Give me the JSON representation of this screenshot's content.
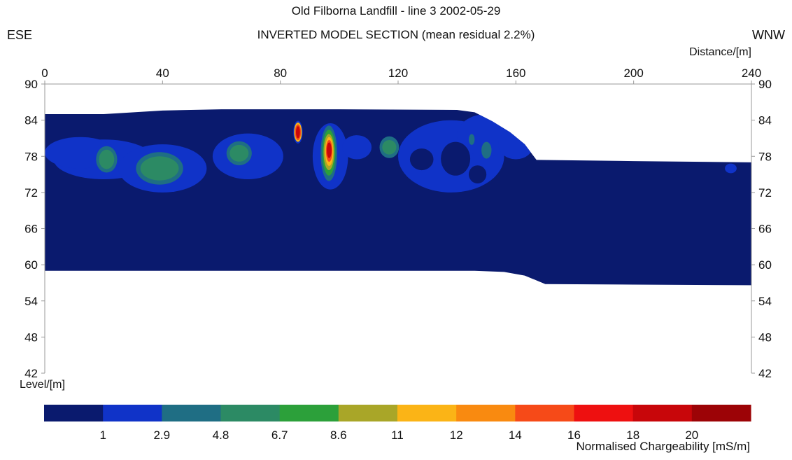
{
  "chart_data": {
    "type": "heatmap",
    "title": "Old Filborna Landfill - line 3 2002-05-29",
    "subtitle": "INVERTED MODEL SECTION (mean residual 2.2%)",
    "direction_left": "ESE",
    "direction_right": "WNW",
    "xlabel": "Distance/[m]",
    "ylabel": "Level/[m]",
    "xlim": [
      0,
      240
    ],
    "ylim": [
      42,
      90
    ],
    "x_ticks": [
      0,
      40,
      80,
      120,
      160,
      200,
      240
    ],
    "y_ticks": [
      90,
      84,
      78,
      72,
      66,
      60,
      54,
      48,
      42
    ],
    "grid": false,
    "colorbar": {
      "title": "Normalised Chargeability [mS/m]",
      "tick_labels": [
        "1",
        "2.9",
        "4.8",
        "6.7",
        "8.6",
        "11",
        "12",
        "14",
        "16",
        "18",
        "20"
      ],
      "colors": [
        "#0a1a6e",
        "#1033c8",
        "#1f6e84",
        "#2c8a64",
        "#2ca03a",
        "#a9a628",
        "#fbb416",
        "#f98a10",
        "#f64a18",
        "#ee1010",
        "#c8060a",
        "#9c0306"
      ]
    },
    "section": {
      "top_surface": [
        [
          0,
          85.0
        ],
        [
          20,
          85.0
        ],
        [
          40,
          85.6
        ],
        [
          60,
          85.8
        ],
        [
          100,
          85.8
        ],
        [
          140,
          85.7
        ],
        [
          146,
          85.3
        ],
        [
          152,
          83.8
        ],
        [
          158,
          82.0
        ],
        [
          163,
          80.0
        ],
        [
          167,
          77.4
        ],
        [
          200,
          77.2
        ],
        [
          240,
          77.0
        ]
      ],
      "bottom_surface": [
        [
          0,
          59.0
        ],
        [
          100,
          59.0
        ],
        [
          146,
          59.0
        ],
        [
          156,
          58.8
        ],
        [
          163,
          58.2
        ],
        [
          170,
          56.8
        ],
        [
          200,
          56.7
        ],
        [
          240,
          56.6
        ]
      ],
      "background_value": "< 1",
      "anomalies": [
        {
          "x_center": 20,
          "level_center": 77.5,
          "value_range": "1 - 2.9"
        },
        {
          "x_center": 66,
          "level_center": 78.0,
          "value_range": "1 - 2.9"
        },
        {
          "x_center": 97,
          "level_center": 78.0,
          "value_range": "1 - 2.9"
        },
        {
          "x_center": 138,
          "level_center": 78.0,
          "value_range": "1 - 2.9"
        },
        {
          "x_center": 22,
          "level_center": 77.5,
          "value_range": "4.8 - 6.7"
        },
        {
          "x_center": 39,
          "level_center": 76.0,
          "value_range": "4.8 - 6.7"
        },
        {
          "x_center": 66,
          "level_center": 78.5,
          "value_range": "4.8 - 6.7"
        },
        {
          "x_center": 117,
          "level_center": 79.5,
          "value_range": "4.8 - 6.7"
        },
        {
          "x_center": 145,
          "level_center": 80.8,
          "value_range": "4.8 - 6.7"
        },
        {
          "x_center": 150,
          "level_center": 79.0,
          "value_range": "4.8 - 6.7"
        },
        {
          "x_center": 86,
          "level_center": 82.0,
          "value_range": "18 - 20"
        },
        {
          "x_center": 96.5,
          "level_center": 79.0,
          "value_range": "18 - 20"
        }
      ]
    }
  }
}
